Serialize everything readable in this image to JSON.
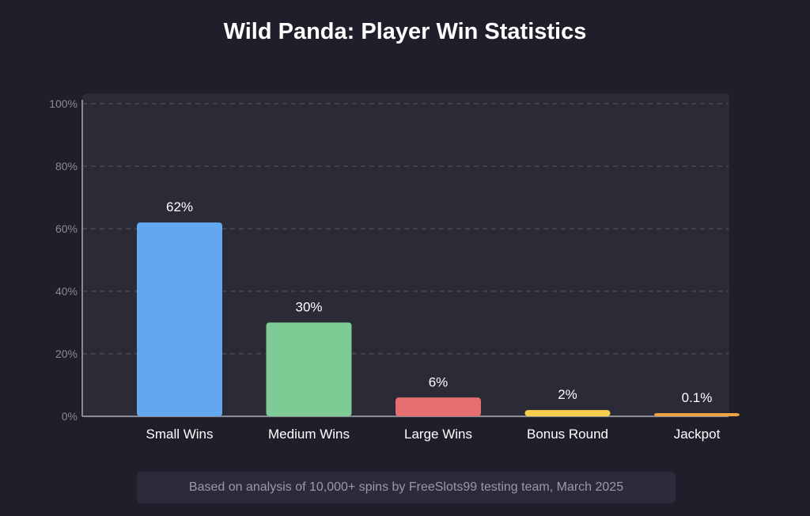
{
  "title": "Wild Panda: Player Win Statistics",
  "footnote": "Based on analysis of 10,000+ spins by FreeSlots99 testing team, March 2025",
  "colors": {
    "background": "#1f1f2b",
    "panel": "#2b2b38",
    "grid": "#5a5a66",
    "axis": "#8a8a94",
    "tick_text": "#8a8a94",
    "label_text": "#ffffff"
  },
  "chart_data": {
    "type": "bar",
    "title": "Wild Panda: Player Win Statistics",
    "xlabel": "",
    "ylabel": "",
    "categories": [
      "Small Wins",
      "Medium Wins",
      "Large Wins",
      "Bonus Round",
      "Jackpot"
    ],
    "values": [
      62,
      30,
      6,
      2,
      0.1
    ],
    "data_labels": [
      "62%",
      "30%",
      "6%",
      "2%",
      "0.1%"
    ],
    "bar_colors": [
      "#63a8ef",
      "#7ecb95",
      "#e56f6f",
      "#f7cf4c",
      "#f0a444"
    ],
    "ylim": [
      0,
      100
    ],
    "yticks": [
      0,
      20,
      40,
      60,
      80,
      100
    ],
    "ytick_labels": [
      "0%",
      "20%",
      "40%",
      "60%",
      "80%",
      "100%"
    ],
    "grid": true,
    "legend": "none"
  }
}
